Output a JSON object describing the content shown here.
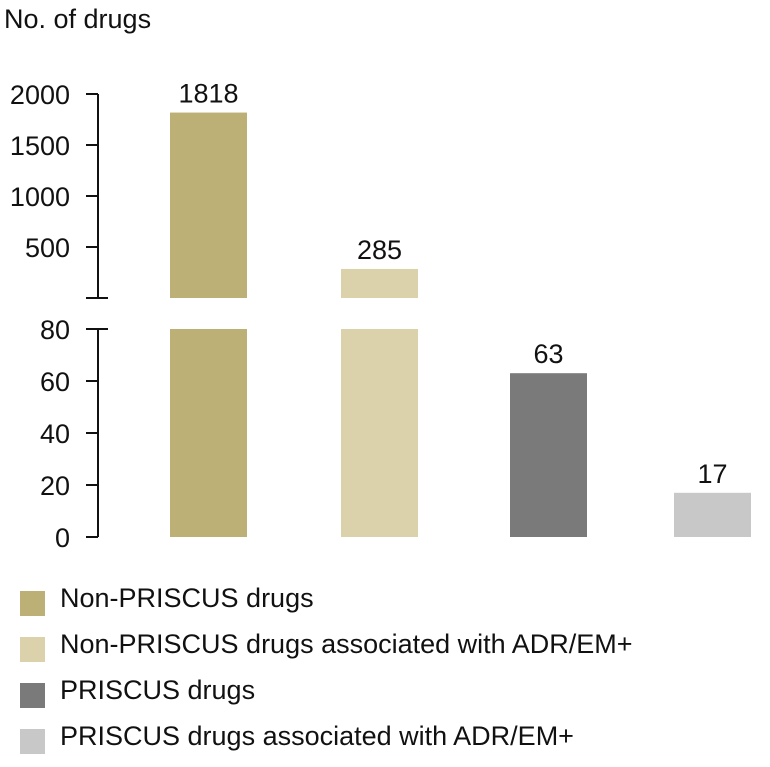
{
  "chart_data": {
    "type": "bar",
    "ylabel": "No. of drugs",
    "axis_break": true,
    "upper_ticks": [
      500,
      1000,
      1500,
      2000
    ],
    "lower_ticks": [
      0,
      20,
      40,
      60,
      80
    ],
    "upper_range": [
      0,
      2000
    ],
    "lower_range": [
      0,
      80
    ],
    "grid": false,
    "legend_position": "bottom",
    "categories": [
      "Non-PRISCUS drugs",
      "Non-PRISCUS drugs associated with ADR/EM+",
      "PRISCUS drugs",
      "PRISCUS drugs associated with ADR/EM+"
    ],
    "values": [
      1818,
      285,
      63,
      17
    ],
    "value_labels": [
      "1818",
      "285",
      "63",
      "17"
    ],
    "colors": [
      "#bdb076",
      "#dbd1ab",
      "#7a7a7a",
      "#c8c8c8"
    ]
  }
}
